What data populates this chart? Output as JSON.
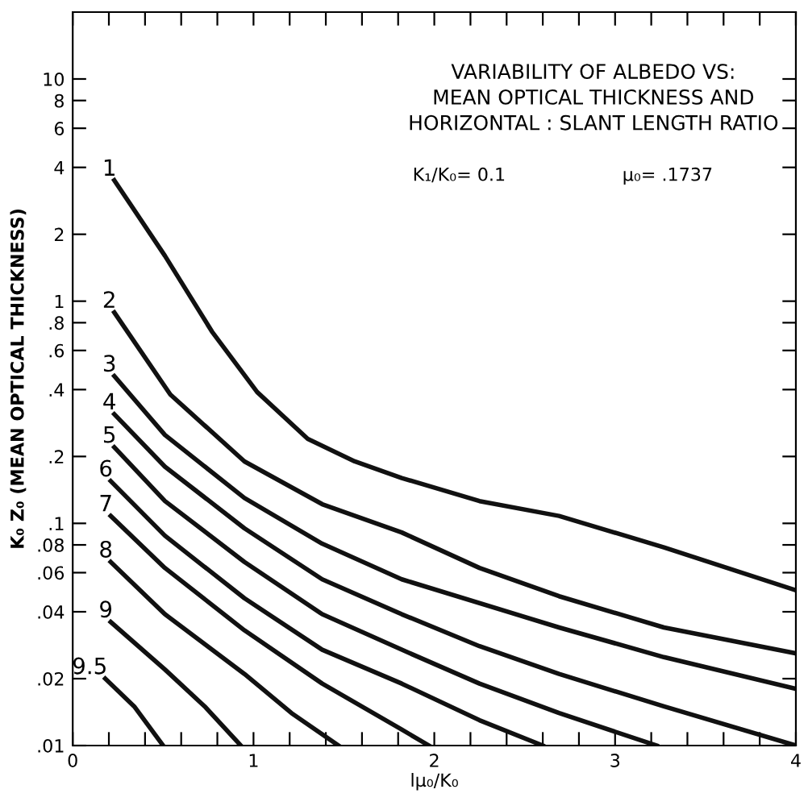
{
  "chart_data": {
    "type": "line",
    "title": "VARIABILITY OF ALBEDO VS:\nMEAN OPTICAL THICKNESS AND\nHORIZONTAL : SLANT LENGTH RATIO",
    "xlabel": "lμ₀/K₀",
    "ylabel": "K₀ Z₀ (MEAN OPTICAL THICKNESS)",
    "annotations": [
      "K₁/K₀= 0.1",
      "μ₀= .1737"
    ],
    "log": "y",
    "xlim": [
      0,
      4
    ],
    "ylim": [
      0.01,
      20
    ],
    "xticks": [
      0,
      {
        "value": 0.2,
        "label": null
      },
      {
        "value": 0.4,
        "label": null
      },
      {
        "value": 0.6,
        "label": null
      },
      {
        "value": 0.8,
        "label": null
      },
      1,
      {
        "value": 1.2,
        "label": null
      },
      {
        "value": 1.4,
        "label": null
      },
      {
        "value": 1.6,
        "label": null
      },
      {
        "value": 1.8,
        "label": null
      },
      2,
      {
        "value": 2.2,
        "label": null
      },
      {
        "value": 2.4,
        "label": null
      },
      {
        "value": 2.6,
        "label": null
      },
      {
        "value": 2.8,
        "label": null
      },
      3,
      {
        "value": 3.2,
        "label": null
      },
      {
        "value": 3.4,
        "label": null
      },
      {
        "value": 3.6,
        "label": null
      },
      {
        "value": 3.8,
        "label": null
      },
      4
    ],
    "yticks": [
      {
        "value": 0.01,
        "label": ".01"
      },
      {
        "value": 0.02,
        "label": ".02"
      },
      {
        "value": 0.04,
        "label": ".04"
      },
      {
        "value": 0.06,
        "label": ".06"
      },
      {
        "value": 0.08,
        "label": ".08"
      },
      {
        "value": 0.1,
        "label": ".1"
      },
      {
        "value": 0.2,
        "label": ".2"
      },
      {
        "value": 0.4,
        "label": ".4"
      },
      {
        "value": 0.6,
        "label": ".6"
      },
      {
        "value": 0.8,
        "label": ".8"
      },
      1,
      2,
      4,
      6,
      8,
      10
    ],
    "grid": false,
    "legend": false,
    "marker": "none",
    "line_style": "solid",
    "series": [
      {
        "name": "1",
        "color": "#111111",
        "x": [
          0.23,
          0.51,
          0.77,
          1.02,
          1.3,
          1.56,
          1.82,
          2.25,
          2.69,
          3.27,
          4.0
        ],
        "values": [
          3.5,
          1.6,
          0.73,
          0.39,
          0.24,
          0.19,
          0.16,
          0.126,
          0.108,
          0.078,
          0.05
        ]
      },
      {
        "name": "2",
        "color": "#111111",
        "x": [
          0.23,
          0.54,
          0.95,
          1.38,
          1.82,
          2.25,
          2.69,
          3.27,
          4.0
        ],
        "values": [
          0.89,
          0.38,
          0.19,
          0.122,
          0.091,
          0.063,
          0.047,
          0.034,
          0.026
        ]
      },
      {
        "name": "3",
        "color": "#111111",
        "x": [
          0.23,
          0.51,
          0.95,
          1.38,
          1.82,
          2.69,
          3.27,
          4.0
        ],
        "values": [
          0.46,
          0.25,
          0.13,
          0.081,
          0.056,
          0.034,
          0.025,
          0.018
        ]
      },
      {
        "name": "4",
        "color": "#111111",
        "x": [
          0.23,
          0.51,
          0.95,
          1.38,
          1.82,
          2.25,
          2.69,
          3.27,
          4.0
        ],
        "values": [
          0.31,
          0.18,
          0.095,
          0.056,
          0.039,
          0.028,
          0.021,
          0.015,
          0.01
        ]
      },
      {
        "name": "5",
        "color": "#111111",
        "x": [
          0.23,
          0.51,
          0.95,
          1.38,
          1.82,
          2.25,
          2.69,
          3.23
        ],
        "values": [
          0.22,
          0.126,
          0.067,
          0.039,
          0.027,
          0.019,
          0.014,
          0.01
        ]
      },
      {
        "name": "6",
        "color": "#111111",
        "x": [
          0.21,
          0.51,
          0.95,
          1.38,
          1.82,
          2.25,
          2.6
        ],
        "values": [
          0.155,
          0.088,
          0.046,
          0.027,
          0.019,
          0.013,
          0.01
        ]
      },
      {
        "name": "7",
        "color": "#111111",
        "x": [
          0.21,
          0.51,
          0.95,
          1.38,
          1.82,
          1.97
        ],
        "values": [
          0.108,
          0.063,
          0.033,
          0.019,
          0.0118,
          0.01
        ]
      },
      {
        "name": "8",
        "color": "#111111",
        "x": [
          0.21,
          0.51,
          0.95,
          1.21,
          1.47
        ],
        "values": [
          0.067,
          0.039,
          0.021,
          0.014,
          0.01
        ]
      },
      {
        "name": "9",
        "color": "#111111",
        "x": [
          0.21,
          0.51,
          0.73,
          0.93
        ],
        "values": [
          0.036,
          0.022,
          0.015,
          0.01
        ]
      },
      {
        "name": "9.5",
        "color": "#111111",
        "x": [
          0.18,
          0.34,
          0.5
        ],
        "values": [
          0.02,
          0.015,
          0.01
        ]
      }
    ]
  }
}
